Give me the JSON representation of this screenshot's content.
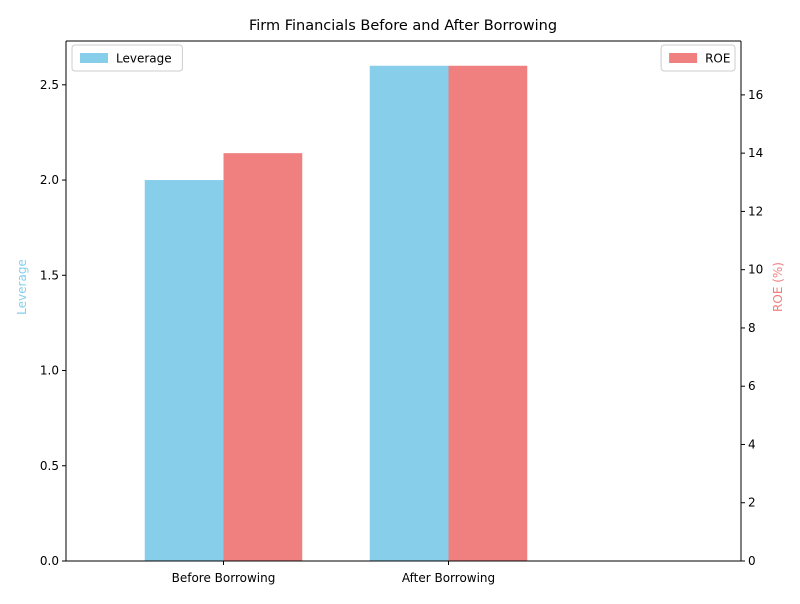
{
  "chart_data": {
    "type": "bar",
    "title": "Firm Financials Before and After Borrowing",
    "categories": [
      "Before Borrowing",
      "After Borrowing"
    ],
    "xlabel": "",
    "series": [
      {
        "name": "Leverage",
        "axis": "left",
        "values": [
          2.0,
          2.6
        ],
        "color": "#87ceeb"
      },
      {
        "name": "ROE",
        "axis": "right",
        "values": [
          14,
          17
        ],
        "color": "#f08080"
      }
    ],
    "left_axis": {
      "label": "Leverage",
      "label_color": "#87ceeb",
      "ylim": [
        0,
        2.73
      ],
      "ticks": [
        0.0,
        0.5,
        1.0,
        1.5,
        2.0,
        2.5
      ],
      "tick_labels": [
        "0.0",
        "0.5",
        "1.0",
        "1.5",
        "2.0",
        "2.5"
      ]
    },
    "right_axis": {
      "label": "ROE (%)",
      "label_color": "#f08080",
      "ylim": [
        0,
        17.85
      ],
      "ticks": [
        0,
        2,
        4,
        6,
        8,
        10,
        12,
        14,
        16
      ],
      "tick_labels": [
        "0",
        "2",
        "4",
        "6",
        "8",
        "10",
        "12",
        "14",
        "16"
      ]
    },
    "legends": [
      {
        "series": "Leverage",
        "placement": "top-left"
      },
      {
        "series": "ROE",
        "placement": "top-right"
      }
    ],
    "grid": false
  }
}
